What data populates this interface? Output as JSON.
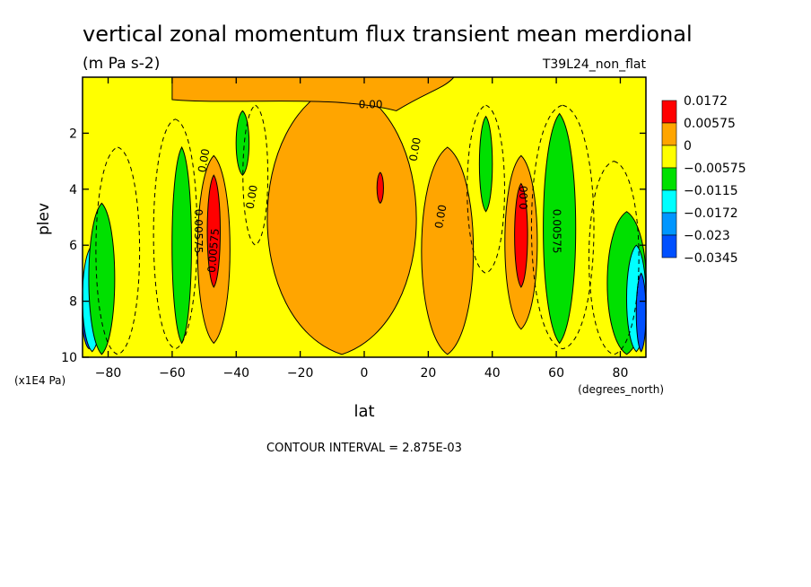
{
  "chart_data": {
    "type": "heatmap",
    "title": "vertical zonal momentum flux transient mean merdional",
    "subtitle": "(m Pa s-2)",
    "run_label": "T39L24_non_flat",
    "xlabel": "lat",
    "x_units": "(degrees_north)",
    "ylabel": "plev",
    "y_units": "(x1E4 Pa)",
    "x_ticks": [
      "-80",
      "-60",
      "-40",
      "-20",
      "0",
      "20",
      "40",
      "60",
      "80"
    ],
    "y_ticks": [
      "2",
      "4",
      "6",
      "8",
      "10"
    ],
    "xlim": [
      -88,
      88
    ],
    "ylim": [
      10,
      0
    ],
    "footer": "CONTOUR INTERVAL = 2.875E-03",
    "contour_labels": [
      "0.00",
      "0.00",
      "0.00",
      "0.00",
      "0.00",
      "0.00",
      "0.00575",
      "0.00575",
      "0.00575"
    ],
    "colorbar": {
      "labels": [
        "0.0172",
        "0.00575",
        "0",
        "−0.00575",
        "−0.0115",
        "−0.0172",
        "−0.023",
        "−0.0345"
      ],
      "colors": [
        "#ff0000",
        "#ffa500",
        "#ffff00",
        "#00e000",
        "#00ffff",
        "#0096ff",
        "#0050ff"
      ]
    },
    "regions": [
      {
        "name": "sh-polar-blue",
        "color": "#0050ff",
        "lat": [
          -88,
          -84
        ],
        "plev": [
          7.5,
          9.7
        ]
      },
      {
        "name": "sh-polar-cyan",
        "color": "#00ffff",
        "lat": [
          -88,
          -82
        ],
        "plev": [
          6.0,
          9.8
        ]
      },
      {
        "name": "sh-green-outer",
        "color": "#00e000",
        "lat": [
          -86,
          -78
        ],
        "plev": [
          4.5,
          9.9
        ]
      },
      {
        "name": "sh-green-mid",
        "color": "#00e000",
        "lat": [
          -60,
          -54
        ],
        "plev": [
          2.5,
          9.5
        ]
      },
      {
        "name": "sh-orange-jet",
        "color": "#ffa500",
        "lat": [
          -52,
          -42
        ],
        "plev": [
          2.8,
          9.5
        ]
      },
      {
        "name": "sh-red-jet",
        "color": "#ff0000",
        "lat": [
          -49,
          -45
        ],
        "plev": [
          3.5,
          7.5
        ]
      },
      {
        "name": "sh-green-upper",
        "color": "#00e000",
        "lat": [
          -40,
          -36
        ],
        "plev": [
          1.2,
          3.5
        ]
      },
      {
        "name": "eq-orange",
        "color": "#ffa500",
        "lat": [
          -30,
          16
        ],
        "plev": [
          0.2,
          9.9
        ]
      },
      {
        "name": "eq-red-spot",
        "color": "#ff0000",
        "lat": [
          4,
          6
        ],
        "plev": [
          3.4,
          4.5
        ]
      },
      {
        "name": "nh-orange-sub",
        "color": "#ffa500",
        "lat": [
          18,
          34
        ],
        "plev": [
          2.5,
          9.9
        ]
      },
      {
        "name": "nh-green-upper",
        "color": "#00e000",
        "lat": [
          36,
          40
        ],
        "plev": [
          1.4,
          4.8
        ]
      },
      {
        "name": "nh-orange-jet",
        "color": "#ffa500",
        "lat": [
          44,
          54
        ],
        "plev": [
          2.8,
          9.0
        ]
      },
      {
        "name": "nh-red-jet",
        "color": "#ff0000",
        "lat": [
          47,
          51
        ],
        "plev": [
          3.8,
          7.5
        ]
      },
      {
        "name": "nh-green-mid",
        "color": "#00e000",
        "lat": [
          56,
          66
        ],
        "plev": [
          1.3,
          9.5
        ]
      },
      {
        "name": "nh-green-outer",
        "color": "#00e000",
        "lat": [
          76,
          88
        ],
        "plev": [
          4.8,
          9.9
        ]
      },
      {
        "name": "nh-polar-cyan",
        "color": "#00ffff",
        "lat": [
          82,
          88
        ],
        "plev": [
          6.0,
          9.8
        ]
      },
      {
        "name": "nh-polar-blue",
        "color": "#0050ff",
        "lat": [
          85,
          88
        ],
        "plev": [
          7.0,
          9.8
        ]
      }
    ]
  }
}
